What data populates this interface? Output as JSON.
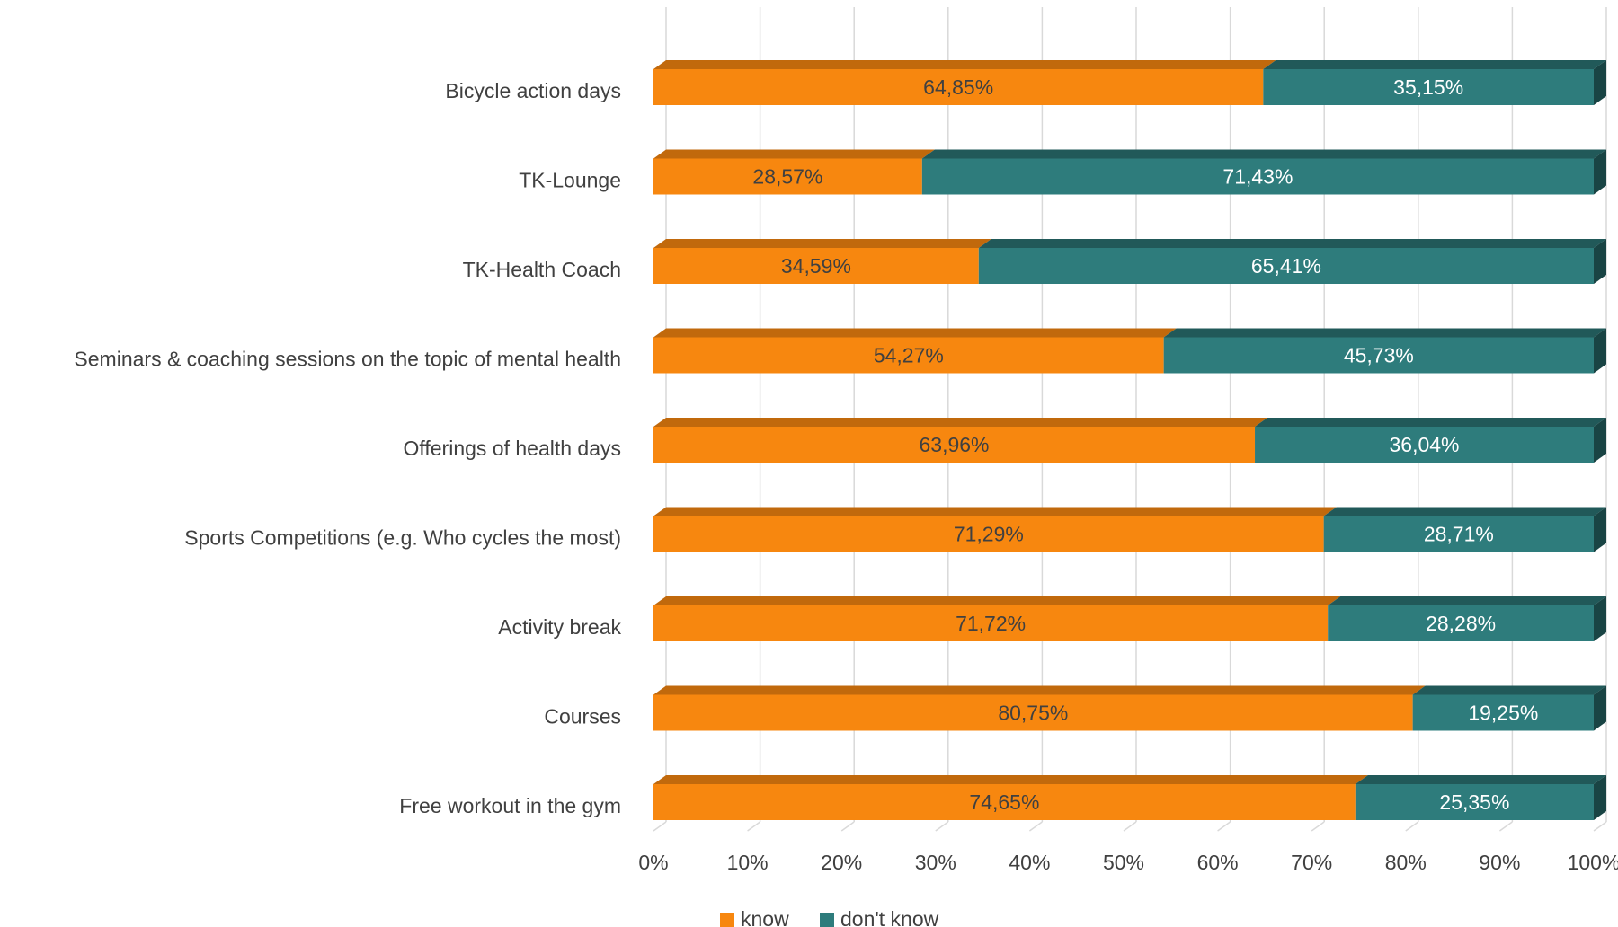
{
  "chart_data": {
    "type": "bar",
    "orientation": "horizontal",
    "stacked": "100%",
    "style": "3d",
    "categories": [
      "Bicycle action days",
      "TK-Lounge",
      "TK-Health Coach",
      "Seminars & coaching sessions on the topic of mental health",
      "Offerings of health days",
      "Sports Competitions (e.g. Who cycles the most)",
      "Activity break",
      "Courses",
      "Free workout in the gym"
    ],
    "series": [
      {
        "name": "know",
        "color": "#f7870f",
        "values": [
          64.85,
          28.57,
          34.59,
          54.27,
          63.96,
          71.29,
          71.72,
          80.75,
          74.65
        ],
        "labels": [
          "64,85%",
          "28,57%",
          "34,59%",
          "54,27%",
          "63,96%",
          "71,29%",
          "71,72%",
          "80,75%",
          "74,65%"
        ]
      },
      {
        "name": "don't know",
        "color": "#2e7c7c",
        "values": [
          35.15,
          71.43,
          65.41,
          45.73,
          36.04,
          28.71,
          28.28,
          19.25,
          25.35
        ],
        "labels": [
          "35,15%",
          "71,43%",
          "65,41%",
          "45,73%",
          "36,04%",
          "28,71%",
          "28,28%",
          "19,25%",
          "25,35%"
        ]
      }
    ],
    "x_axis": {
      "min": 0,
      "max": 100,
      "ticks": [
        "0%",
        "10%",
        "20%",
        "30%",
        "40%",
        "50%",
        "60%",
        "70%",
        "80%",
        "90%",
        "100%"
      ]
    },
    "grid": true,
    "legend_position": "bottom"
  }
}
